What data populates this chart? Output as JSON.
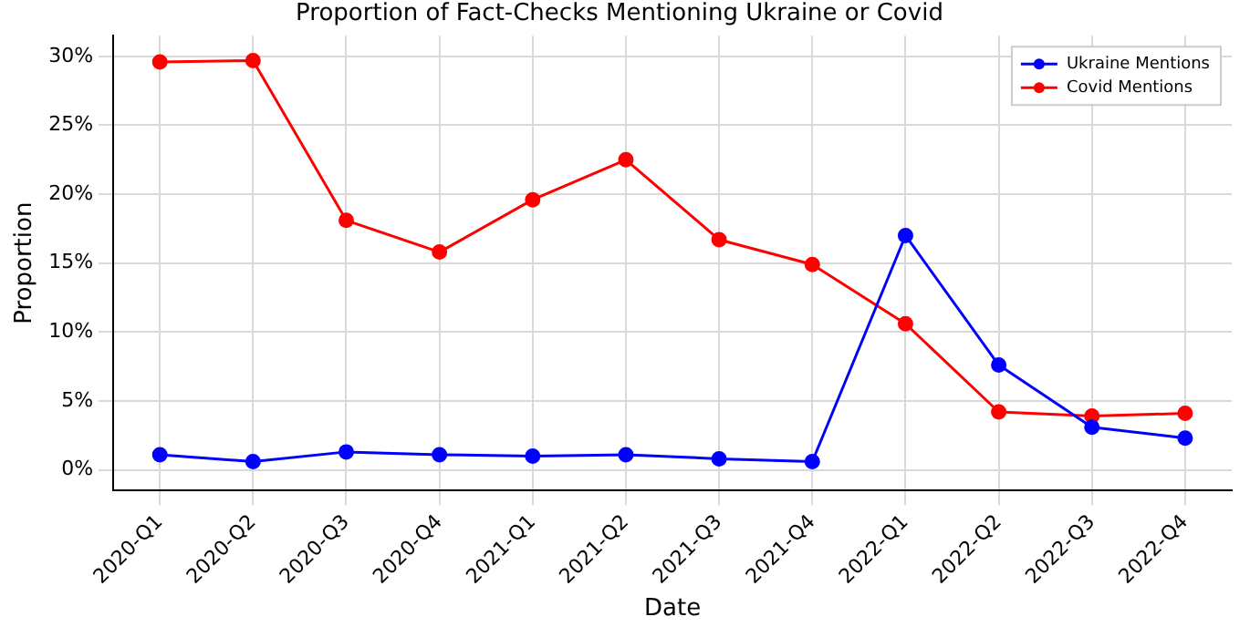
{
  "chart_data": {
    "type": "line",
    "title": "Proportion of Fact-Checks Mentioning Ukraine or Covid",
    "xlabel": "Date",
    "ylabel": "Proportion",
    "categories": [
      "2020-Q1",
      "2020-Q2",
      "2020-Q3",
      "2020-Q4",
      "2021-Q1",
      "2021-Q2",
      "2021-Q3",
      "2021-Q4",
      "2022-Q1",
      "2022-Q2",
      "2022-Q3",
      "2022-Q4"
    ],
    "series": [
      {
        "name": "Ukraine Mentions",
        "color": "#0000ff",
        "values": [
          1.1,
          0.6,
          1.3,
          1.1,
          1.0,
          1.1,
          0.8,
          0.6,
          17.0,
          7.6,
          3.1,
          2.3
        ]
      },
      {
        "name": "Covid Mentions",
        "color": "#ff0000",
        "values": [
          29.6,
          29.7,
          18.1,
          15.8,
          19.6,
          22.5,
          16.7,
          14.9,
          10.6,
          4.2,
          3.9,
          4.1
        ]
      }
    ],
    "ylim": [
      -1.5,
      31.5
    ],
    "yticks": [
      {
        "value": 0,
        "label": "0%"
      },
      {
        "value": 5,
        "label": "5%"
      },
      {
        "value": 10,
        "label": "10%"
      },
      {
        "value": 15,
        "label": "15%"
      },
      {
        "value": 20,
        "label": "20%"
      },
      {
        "value": 25,
        "label": "25%"
      },
      {
        "value": 30,
        "label": "30%"
      }
    ],
    "grid": true,
    "legend": "top right",
    "marker": "circle",
    "line_style": "solid"
  }
}
